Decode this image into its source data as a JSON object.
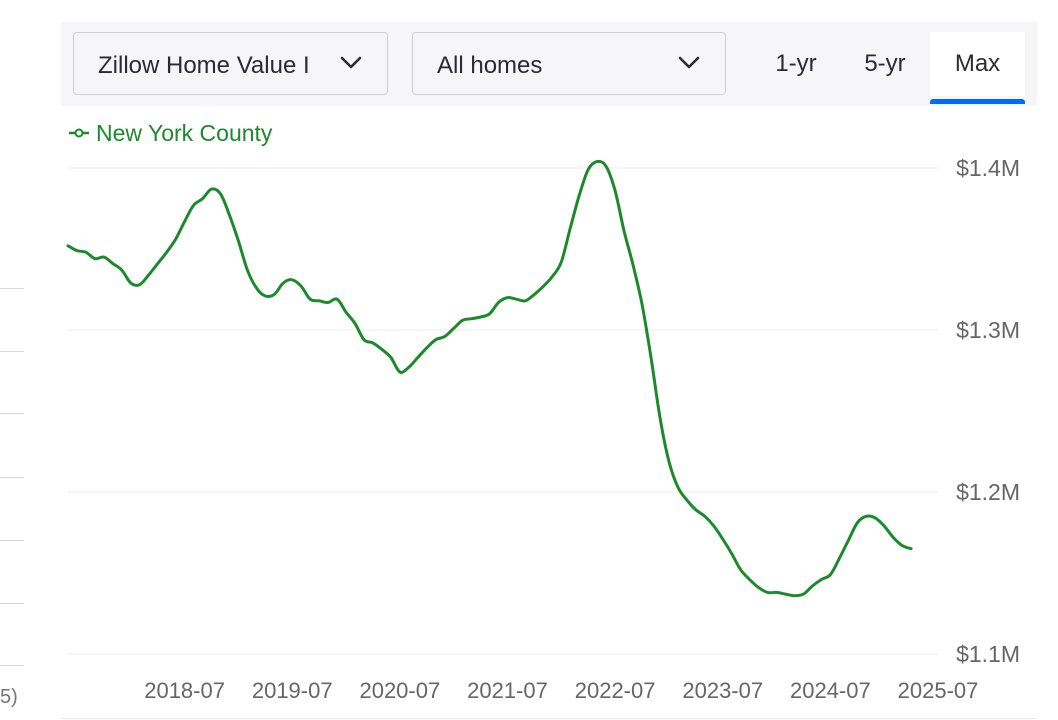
{
  "filters": {
    "metric_select": {
      "value": "Zillow Home Value I",
      "icon": "chevron-down-icon"
    },
    "home_type_select": {
      "value": "All homes",
      "icon": "chevron-down-icon"
    }
  },
  "range_tabs": [
    {
      "label": "1-yr",
      "active": false
    },
    {
      "label": "5-yr",
      "active": false
    },
    {
      "label": "Max",
      "active": true
    }
  ],
  "colors": {
    "series": "#1c8a2c",
    "accent": "#006aff",
    "grid": "#ececec",
    "axis_text": "#666666"
  },
  "left_fragment": "5)",
  "chart_data": {
    "type": "line",
    "legend_position": "top-left",
    "grid": true,
    "y_axis_side": "right",
    "ylim": [
      1100000,
      1400000
    ],
    "y_ticks": [
      {
        "value": 1400000,
        "label": "$1.4M"
      },
      {
        "value": 1300000,
        "label": "$1.3M"
      },
      {
        "value": 1200000,
        "label": "$1.2M"
      },
      {
        "value": 1100000,
        "label": "$1.1M"
      }
    ],
    "xlim": [
      "2017-06",
      "2025-07"
    ],
    "x_ticks": [
      {
        "value": "2018-07",
        "label": "2018-07"
      },
      {
        "value": "2019-07",
        "label": "2019-07"
      },
      {
        "value": "2020-07",
        "label": "2020-07"
      },
      {
        "value": "2021-07",
        "label": "2021-07"
      },
      {
        "value": "2022-07",
        "label": "2022-07"
      },
      {
        "value": "2023-07",
        "label": "2023-07"
      },
      {
        "value": "2024-07",
        "label": "2024-07"
      },
      {
        "value": "2025-07",
        "label": "2025-07"
      }
    ],
    "series": [
      {
        "name": "New York County",
        "color": "#1c8a2c",
        "points": [
          [
            "2017-06",
            1352000
          ],
          [
            "2017-07",
            1349000
          ],
          [
            "2017-08",
            1348000
          ],
          [
            "2017-09",
            1344000
          ],
          [
            "2017-10",
            1345000
          ],
          [
            "2017-11",
            1341000
          ],
          [
            "2017-12",
            1337000
          ],
          [
            "2018-01",
            1329000
          ],
          [
            "2018-02",
            1328000
          ],
          [
            "2018-03",
            1334000
          ],
          [
            "2018-04",
            1341000
          ],
          [
            "2018-05",
            1348000
          ],
          [
            "2018-06",
            1356000
          ],
          [
            "2018-07",
            1367000
          ],
          [
            "2018-08",
            1377000
          ],
          [
            "2018-09",
            1381000
          ],
          [
            "2018-10",
            1387000
          ],
          [
            "2018-11",
            1384000
          ],
          [
            "2018-12",
            1371000
          ],
          [
            "2019-01",
            1355000
          ],
          [
            "2019-02",
            1337000
          ],
          [
            "2019-03",
            1326000
          ],
          [
            "2019-04",
            1321000
          ],
          [
            "2019-05",
            1322000
          ],
          [
            "2019-06",
            1329000
          ],
          [
            "2019-07",
            1331000
          ],
          [
            "2019-08",
            1327000
          ],
          [
            "2019-09",
            1319000
          ],
          [
            "2019-10",
            1318000
          ],
          [
            "2019-11",
            1317000
          ],
          [
            "2019-12",
            1319000
          ],
          [
            "2020-01",
            1311000
          ],
          [
            "2020-02",
            1304000
          ],
          [
            "2020-03",
            1294000
          ],
          [
            "2020-04",
            1292000
          ],
          [
            "2020-05",
            1288000
          ],
          [
            "2020-06",
            1283000
          ],
          [
            "2020-07",
            1274000
          ],
          [
            "2020-08",
            1277000
          ],
          [
            "2020-09",
            1283000
          ],
          [
            "2020-10",
            1289000
          ],
          [
            "2020-11",
            1294000
          ],
          [
            "2020-12",
            1296000
          ],
          [
            "2021-01",
            1301000
          ],
          [
            "2021-02",
            1306000
          ],
          [
            "2021-03",
            1307000
          ],
          [
            "2021-04",
            1308000
          ],
          [
            "2021-05",
            1310000
          ],
          [
            "2021-06",
            1317000
          ],
          [
            "2021-07",
            1320000
          ],
          [
            "2021-08",
            1319000
          ],
          [
            "2021-09",
            1318000
          ],
          [
            "2021-10",
            1322000
          ],
          [
            "2021-11",
            1327000
          ],
          [
            "2021-12",
            1333000
          ],
          [
            "2022-01",
            1342000
          ],
          [
            "2022-02",
            1363000
          ],
          [
            "2022-03",
            1383000
          ],
          [
            "2022-04",
            1399000
          ],
          [
            "2022-05",
            1404000
          ],
          [
            "2022-06",
            1401000
          ],
          [
            "2022-07",
            1386000
          ],
          [
            "2022-08",
            1361000
          ],
          [
            "2022-09",
            1340000
          ],
          [
            "2022-10",
            1316000
          ],
          [
            "2022-11",
            1283000
          ],
          [
            "2022-12",
            1246000
          ],
          [
            "2023-01",
            1219000
          ],
          [
            "2023-02",
            1203000
          ],
          [
            "2023-03",
            1195000
          ],
          [
            "2023-04",
            1189000
          ],
          [
            "2023-05",
            1185000
          ],
          [
            "2023-06",
            1179000
          ],
          [
            "2023-07",
            1171000
          ],
          [
            "2023-08",
            1162000
          ],
          [
            "2023-09",
            1152000
          ],
          [
            "2023-10",
            1146000
          ],
          [
            "2023-11",
            1141000
          ],
          [
            "2023-12",
            1138000
          ],
          [
            "2024-01",
            1138000
          ],
          [
            "2024-02",
            1137000
          ],
          [
            "2024-03",
            1136000
          ],
          [
            "2024-04",
            1137000
          ],
          [
            "2024-05",
            1142000
          ],
          [
            "2024-06",
            1146000
          ],
          [
            "2024-07",
            1149000
          ],
          [
            "2024-08",
            1159000
          ],
          [
            "2024-09",
            1170000
          ],
          [
            "2024-10",
            1181000
          ],
          [
            "2024-11",
            1185000
          ],
          [
            "2024-12",
            1184000
          ],
          [
            "2025-01",
            1179000
          ],
          [
            "2025-02",
            1172000
          ],
          [
            "2025-03",
            1167000
          ],
          [
            "2025-04",
            1165000
          ]
        ]
      }
    ]
  }
}
